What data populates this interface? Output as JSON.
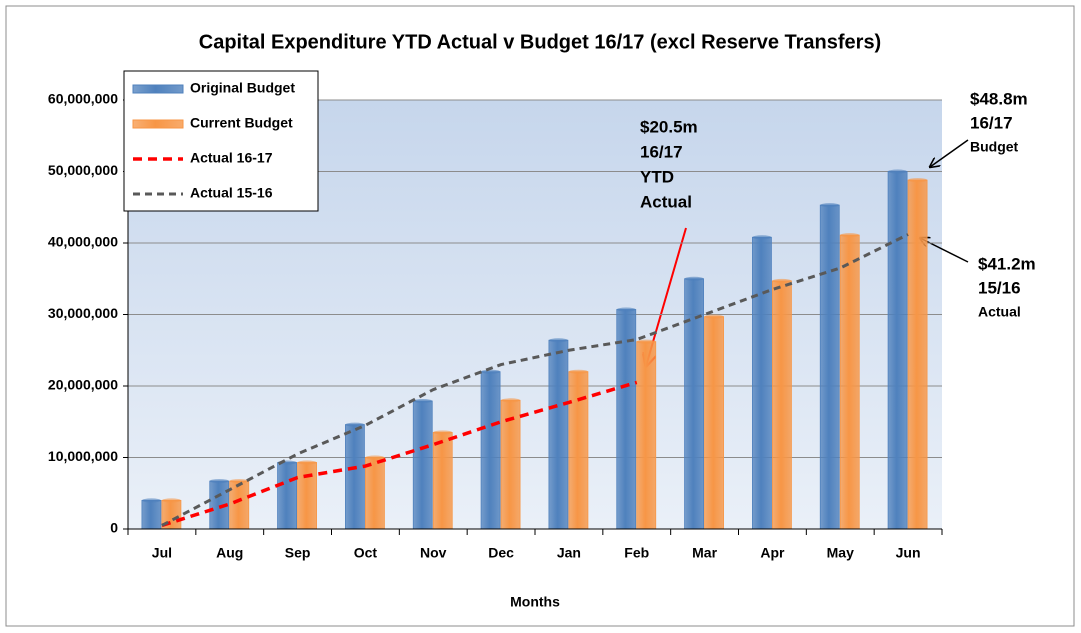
{
  "chart_data": {
    "type": "bar",
    "title": "Capital Expenditure  YTD Actual v Budget 16/17 (excl Reserve Transfers)",
    "x_label": "Months",
    "categories": [
      "Jul",
      "Aug",
      "Sep",
      "Oct",
      "Nov",
      "Dec",
      "Jan",
      "Feb",
      "Mar",
      "Apr",
      "May",
      "Jun"
    ],
    "series": [
      {
        "name": "Original Budget",
        "type": "bar",
        "color": "#4f81bd",
        "values": [
          4000000,
          6700000,
          9300000,
          14600000,
          17900000,
          22000000,
          26400000,
          30700000,
          35000000,
          40800000,
          45300000,
          50000000
        ]
      },
      {
        "name": "Current Budget",
        "type": "bar",
        "color": "#f79646",
        "values": [
          4000000,
          6700000,
          9300000,
          10000000,
          13500000,
          18000000,
          22000000,
          26200000,
          29700000,
          34700000,
          41100000,
          48800000
        ]
      },
      {
        "name": "Actual 16-17",
        "type": "line",
        "color": "#ff0000",
        "values": [
          500000,
          3500000,
          7200000,
          8800000,
          11800000,
          15000000,
          17700000,
          20500000,
          null,
          null,
          null,
          null
        ]
      },
      {
        "name": "Actual 15-16",
        "type": "line",
        "color": "#595959",
        "values": [
          500000,
          5500000,
          10500000,
          14500000,
          19500000,
          23000000,
          25000000,
          26500000,
          30000000,
          33500000,
          36500000,
          41200000
        ]
      }
    ],
    "ylim": [
      0,
      60000000
    ],
    "yticks": [
      {
        "value": 0,
        "label": "0"
      },
      {
        "value": 10000000,
        "label": "10,000,000"
      },
      {
        "value": 20000000,
        "label": "20,000,000"
      },
      {
        "value": 30000000,
        "label": "30,000,000"
      },
      {
        "value": 40000000,
        "label": "40,000,000"
      },
      {
        "value": 50000000,
        "label": "50,000,000"
      },
      {
        "value": 60000000,
        "label": "60,000,000"
      }
    ],
    "grid": true,
    "legend": "top-left",
    "annotations": [
      {
        "lines": [
          "$20.5m",
          "16/17",
          "YTD",
          "Actual"
        ]
      },
      {
        "lines": [
          "$48.8m",
          "16/17",
          "Budget"
        ]
      },
      {
        "lines": [
          "$41.2m",
          "15/16",
          "Actual"
        ]
      }
    ]
  }
}
